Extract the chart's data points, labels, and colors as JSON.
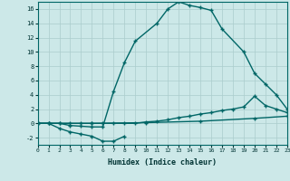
{
  "bg_color": "#cce8e8",
  "grid_color": "#aacccc",
  "line_color": "#006666",
  "xlabel": "Humidex (Indice chaleur)",
  "xlim": [
    0,
    23
  ],
  "ylim": [
    -3,
    17
  ],
  "xticks": [
    0,
    1,
    2,
    3,
    4,
    5,
    6,
    7,
    8,
    9,
    10,
    11,
    12,
    13,
    14,
    15,
    16,
    17,
    18,
    19,
    20,
    21,
    22,
    23
  ],
  "yticks": [
    -2,
    0,
    2,
    4,
    6,
    8,
    10,
    12,
    14,
    16
  ],
  "curve1_x": [
    0,
    1,
    2,
    3,
    4,
    5,
    6,
    7,
    8,
    9,
    11,
    12,
    13,
    14,
    15,
    16,
    17,
    19,
    20,
    21,
    22,
    23
  ],
  "curve1_y": [
    0.0,
    0.0,
    0.0,
    -0.3,
    -0.4,
    -0.5,
    -0.5,
    4.5,
    8.5,
    11.5,
    14.0,
    16.0,
    17.0,
    16.5,
    16.2,
    15.8,
    13.2,
    10.0,
    7.0,
    5.5,
    4.0,
    2.0
  ],
  "curve2_x": [
    0,
    1,
    2,
    3,
    4,
    5,
    6,
    7,
    8
  ],
  "curve2_y": [
    0.0,
    0.0,
    -0.7,
    -1.2,
    -1.5,
    -1.8,
    -2.5,
    -2.5,
    -1.8
  ],
  "curve3_x": [
    0,
    1,
    2,
    3,
    4,
    5,
    6,
    7,
    8,
    9,
    10,
    11,
    12,
    13,
    14,
    15,
    16,
    17,
    18,
    19,
    20,
    21,
    22,
    23
  ],
  "curve3_y": [
    0.0,
    0.0,
    0.0,
    0.0,
    0.0,
    0.0,
    0.0,
    0.0,
    0.0,
    0.0,
    0.2,
    0.3,
    0.5,
    0.8,
    1.0,
    1.3,
    1.5,
    1.8,
    2.0,
    2.3,
    3.8,
    2.5,
    2.0,
    1.5
  ],
  "curve4_x": [
    0,
    5,
    10,
    15,
    20,
    23
  ],
  "curve4_y": [
    0.0,
    0.0,
    0.1,
    0.3,
    0.7,
    1.0
  ]
}
